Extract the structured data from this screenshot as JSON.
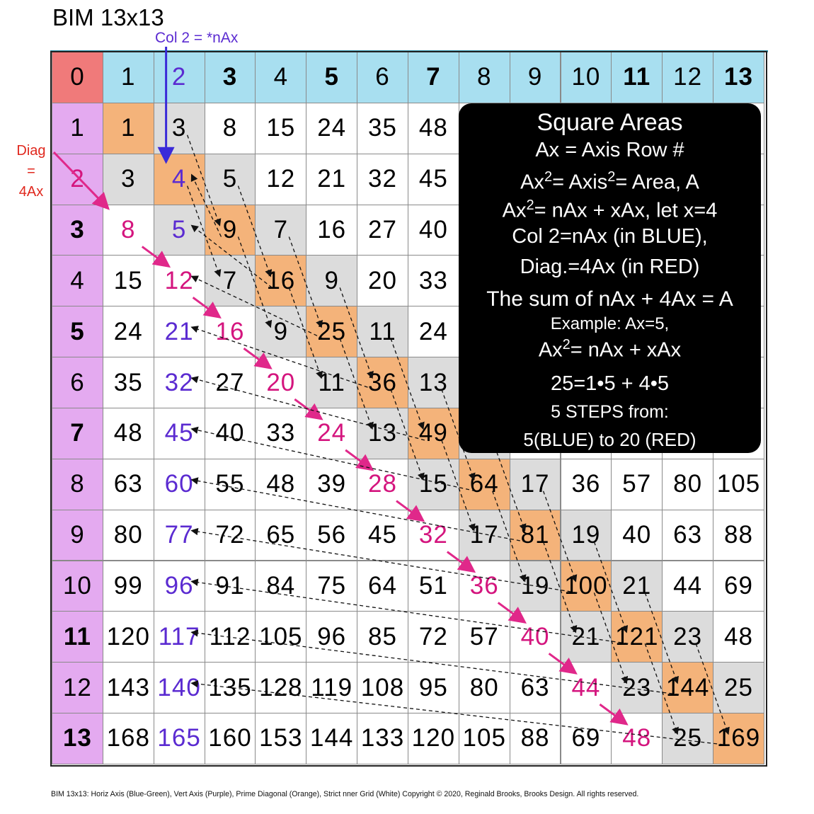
{
  "title": "BIM 13x13",
  "col2_label": "Col 2 = *nAx",
  "diag_label": [
    "Diag",
    "=",
    "4Ax"
  ],
  "header_row": [
    "0",
    "1",
    "2",
    "3",
    "4",
    "5",
    "6",
    "7",
    "8",
    "9",
    "10",
    "11",
    "12",
    "13"
  ],
  "rows": [
    [
      "1",
      "1",
      "3",
      "8",
      "15",
      "24",
      "35",
      "48",
      "",
      "",
      "",
      "",
      "",
      ""
    ],
    [
      "2",
      "3",
      "4",
      "5",
      "12",
      "21",
      "32",
      "45",
      "",
      "",
      "",
      "",
      "",
      ""
    ],
    [
      "3",
      "8",
      "5",
      "9",
      "7",
      "16",
      "27",
      "40",
      "",
      "",
      "",
      "",
      "",
      ""
    ],
    [
      "4",
      "15",
      "12",
      "7",
      "16",
      "9",
      "20",
      "33",
      "",
      "",
      "",
      "",
      "",
      ""
    ],
    [
      "5",
      "24",
      "21",
      "16",
      "9",
      "25",
      "11",
      "24",
      "",
      "",
      "",
      "",
      "",
      ""
    ],
    [
      "6",
      "35",
      "32",
      "27",
      "20",
      "11",
      "36",
      "13",
      "",
      "",
      "",
      "",
      "",
      ""
    ],
    [
      "7",
      "48",
      "45",
      "40",
      "33",
      "24",
      "13",
      "49",
      "",
      "",
      "",
      "",
      "",
      ""
    ],
    [
      "8",
      "63",
      "60",
      "55",
      "48",
      "39",
      "28",
      "15",
      "64",
      "17",
      "36",
      "57",
      "80",
      "105"
    ],
    [
      "9",
      "80",
      "77",
      "72",
      "65",
      "56",
      "45",
      "32",
      "17",
      "81",
      "19",
      "40",
      "63",
      "88"
    ],
    [
      "10",
      "99",
      "96",
      "91",
      "84",
      "75",
      "64",
      "51",
      "36",
      "19",
      "100",
      "21",
      "44",
      "69"
    ],
    [
      "11",
      "120",
      "117",
      "112",
      "105",
      "96",
      "85",
      "72",
      "57",
      "40",
      "21",
      "121",
      "23",
      "48"
    ],
    [
      "12",
      "143",
      "140",
      "135",
      "128",
      "119",
      "108",
      "95",
      "80",
      "63",
      "44",
      "23",
      "144",
      "25"
    ],
    [
      "13",
      "168",
      "165",
      "160",
      "153",
      "144",
      "133",
      "120",
      "105",
      "88",
      "69",
      "48",
      "25",
      "169"
    ]
  ],
  "info_box": {
    "title": "Square Areas",
    "line1": "Ax = Axis Row #",
    "line2_a": "Ax",
    "line2_sup1": "2",
    "line2_b": "= Axis",
    "line2_sup2": "2",
    "line2_c": "= Area, A",
    "line3_a": "Ax",
    "line3_sup": "2",
    "line3_b": "= nAx + xAx, let x=4",
    "line4": "Col 2=nAx (in BLUE),",
    "line5": "Diag.=4Ax (in RED)",
    "line6": "The sum of nAx + 4Ax = A",
    "line7": "Example: Ax=5,",
    "line8_a": "Ax",
    "line8_sup": "2",
    "line8_b": "= nAx + xAx",
    "line9": "25=1•5 + 4•5",
    "line10": "5 STEPS from:",
    "line11": "5(BLUE) to 20 (RED)"
  },
  "footer": "BIM 13x13:  Horiz Axis (Blue-Green), Vert Axis (Purple), Prime Diagonal (Orange), Strict nner Grid (White)  Copyright © 2020, Reginald Brooks, Brooks Design. All rights reserved.",
  "colors": {
    "horizontal_axis": "#a8dff0",
    "vertical_axis": "#e4aaf0",
    "origin": "#f07a7a",
    "prime_diagonal": "#f4b37a",
    "gray_cells": "#dcdcdc",
    "blue_text": "#5b2bd1",
    "red_text": "#d4157e",
    "red_arrows": "#e0288a"
  }
}
